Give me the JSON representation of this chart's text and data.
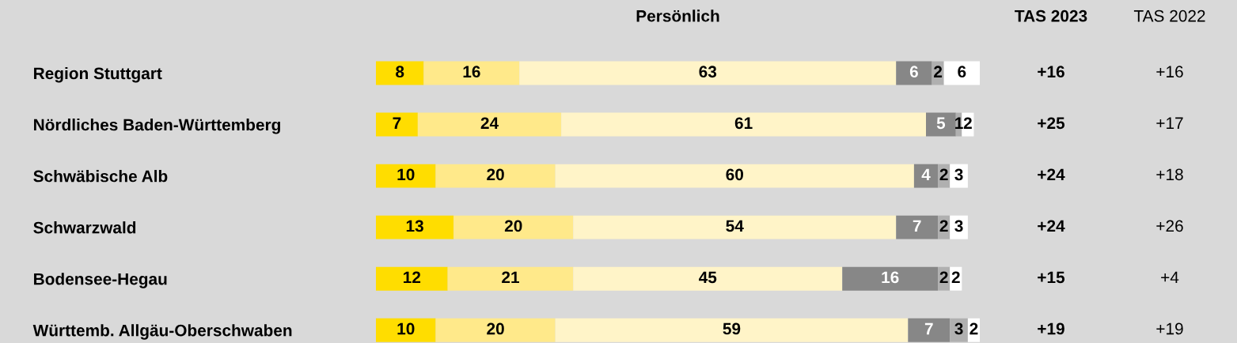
{
  "chart_data": {
    "type": "bar",
    "orientation": "horizontal",
    "stacked": true,
    "title": "Persönlich",
    "categories": [
      "Region Stuttgart",
      "Nördliches Baden-Württemberg",
      "Schwäbische Alb",
      "Schwarzwald",
      "Bodensee-Hegau",
      "Württemb. Allgäu-Oberschwaben"
    ],
    "series": [
      {
        "color": "#ffdd00",
        "values": [
          8,
          7,
          10,
          13,
          12,
          10
        ]
      },
      {
        "color": "#ffe98a",
        "values": [
          16,
          24,
          20,
          20,
          21,
          20
        ]
      },
      {
        "color": "#fff4c8",
        "values": [
          63,
          61,
          60,
          54,
          45,
          59
        ]
      },
      {
        "color": "#878787",
        "values": [
          6,
          5,
          4,
          7,
          16,
          7
        ]
      },
      {
        "color": "#b0b0b0",
        "values": [
          2,
          1,
          2,
          2,
          2,
          3
        ]
      },
      {
        "color": "#ffffff",
        "values": [
          6,
          2,
          3,
          3,
          2,
          2
        ]
      }
    ],
    "xlim": [
      0,
      101
    ],
    "data_labels": true,
    "tick_labels": "y",
    "grid": false,
    "legend": false,
    "annotations": [
      "TAS 2023",
      "TAS 2022",
      "+16",
      "+16",
      "+25",
      "+17",
      "+24",
      "+18",
      "+24",
      "+26",
      "+15",
      "+4",
      "+19",
      "+19"
    ]
  }
}
